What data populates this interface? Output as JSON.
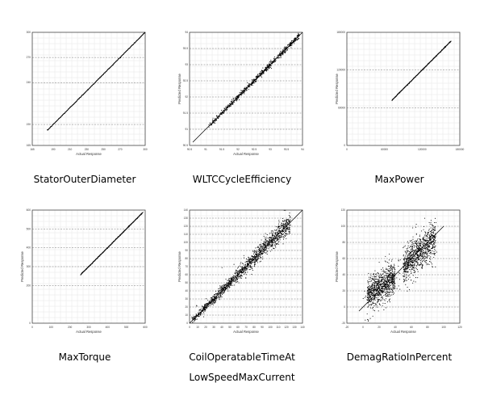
{
  "page_theme": {
    "background": "#ffffff",
    "plot_frame": "#444444",
    "grid_color": "#c8c8c8",
    "point_color": "#000000"
  },
  "chart_data": [
    {
      "type": "scatter",
      "caption_lines": [
        "StatorOuterDiameter"
      ],
      "xlabel": "Actual Response",
      "ylabel": "",
      "xlim": [
        165,
        300
      ],
      "ylim": [
        165,
        300
      ],
      "xticks": [
        165,
        190,
        210,
        230,
        250,
        270,
        300
      ],
      "yticks": [
        165,
        190,
        240,
        270,
        300
      ],
      "grid": true,
      "fit_line": {
        "from": [
          183,
          183
        ],
        "to": [
          300,
          300
        ]
      },
      "points": {
        "band": "tight",
        "x_range": [
          183,
          300
        ],
        "count": 260
      }
    },
    {
      "type": "scatter",
      "caption_lines": [
        "WLTCCycleEfficiency"
      ],
      "xlabel": "Actual Response",
      "ylabel": "Predicted Response",
      "xlim": [
        90.5,
        94.0
      ],
      "ylim": [
        90.5,
        94.0
      ],
      "xticks": [
        90.5,
        91.0,
        91.5,
        92.0,
        92.5,
        93.0,
        93.5,
        94.0
      ],
      "yticks": [
        90.5,
        91.0,
        91.5,
        92.0,
        92.5,
        93.0,
        93.5,
        94.0
      ],
      "grid": true,
      "fit_line": {
        "from": [
          90.6,
          90.6
        ],
        "to": [
          94.0,
          94.0
        ]
      },
      "points": {
        "band": "medium",
        "x_range": [
          91.1,
          93.9
        ],
        "count": 700
      }
    },
    {
      "type": "scatter",
      "caption_lines": [
        "MaxPower"
      ],
      "xlabel": "",
      "ylabel": "Predicted Response",
      "xlim": [
        0,
        180000
      ],
      "ylim": [
        0,
        180000
      ],
      "xticks": [
        0,
        60000,
        120000,
        180000
      ],
      "yticks": [
        0,
        60000,
        120000,
        180000
      ],
      "grid": true,
      "fit_line": {
        "from": [
          72000,
          72000
        ],
        "to": [
          166000,
          166000
        ]
      },
      "points": {
        "band": "tight",
        "x_range": [
          72000,
          166000
        ],
        "count": 260
      }
    },
    {
      "type": "scatter",
      "caption_lines": [
        "MaxTorque"
      ],
      "xlabel": "Actual Response",
      "ylabel": "Predicted Response",
      "xlim": [
        0,
        600
      ],
      "ylim": [
        0,
        600
      ],
      "xticks": [
        0,
        100,
        200,
        300,
        400,
        500,
        600
      ],
      "yticks": [
        0,
        200,
        300,
        400,
        500,
        600
      ],
      "grid": true,
      "fit_line": {
        "from": [
          255,
          255
        ],
        "to": [
          590,
          590
        ]
      },
      "points": {
        "band": "tight",
        "x_range": [
          258,
          585
        ],
        "count": 280
      }
    },
    {
      "type": "scatter",
      "caption_lines": [
        "CoilOperatableTimeAt",
        "LowSpeedMaxCurrent"
      ],
      "xlabel": "Actual Response",
      "ylabel": "Predicted Response",
      "xlim": [
        0,
        140
      ],
      "ylim": [
        0,
        140
      ],
      "xticks": [
        0,
        10,
        20,
        30,
        40,
        50,
        60,
        70,
        80,
        90,
        100,
        110,
        120,
        130,
        140
      ],
      "yticks": [
        0,
        10,
        20,
        30,
        40,
        50,
        60,
        70,
        80,
        90,
        100,
        110,
        120,
        130,
        140
      ],
      "grid": true,
      "fit_line": {
        "from": [
          0,
          0
        ],
        "to": [
          140,
          140
        ]
      },
      "points": {
        "band": "wide",
        "x_range": [
          2,
          125
        ],
        "count": 1400
      }
    },
    {
      "type": "scatter",
      "caption_lines": [
        "DemagRatioInPercent"
      ],
      "xlabel": "Actual Response",
      "ylabel": "Predicted Response",
      "xlim": [
        -20,
        120
      ],
      "ylim": [
        -20,
        120
      ],
      "xticks": [
        -20,
        0,
        20,
        40,
        60,
        80,
        100,
        120
      ],
      "yticks": [
        -20,
        0,
        20,
        40,
        60,
        80,
        100,
        120
      ],
      "grid": true,
      "fit_line": {
        "from": [
          -5,
          -5
        ],
        "to": [
          100,
          100
        ]
      },
      "points": {
        "band": "very-wide",
        "x_range": [
          0,
          95
        ],
        "count": 1800
      }
    }
  ]
}
